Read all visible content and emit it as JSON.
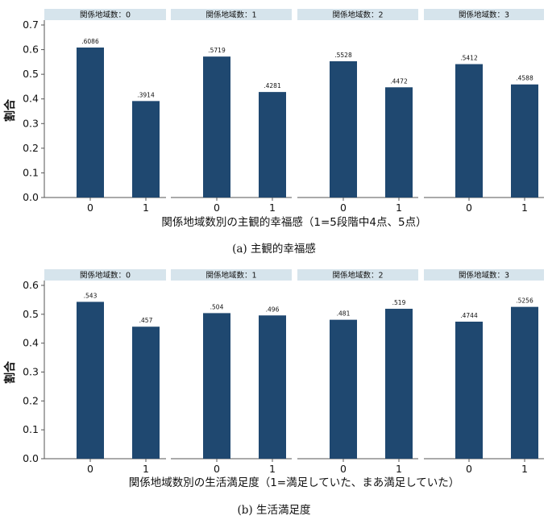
{
  "chart_data": [
    {
      "type": "bar",
      "caption": "(a)  主観的幸福感",
      "xlabel": "関係地域数別の主観的幸福感（1=5段階中4点、5点）",
      "ylabel": "割合",
      "ylim": [
        0,
        0.7
      ],
      "yticks": [
        "0.0",
        "0.1",
        "0.2",
        "0.3",
        "0.4",
        "0.5",
        "0.6",
        "0.7"
      ],
      "categories": [
        "0",
        "1"
      ],
      "bar_color": "#1f4870",
      "strip_color": "#d6e4ec",
      "panels": [
        {
          "title": "関係地域数：0",
          "values": [
            0.6086,
            0.3914
          ],
          "labels": [
            ".6086",
            ".3914"
          ]
        },
        {
          "title": "関係地域数：1",
          "values": [
            0.5719,
            0.4281
          ],
          "labels": [
            ".5719",
            ".4281"
          ]
        },
        {
          "title": "関係地域数：2",
          "values": [
            0.5528,
            0.4472
          ],
          "labels": [
            ".5528",
            ".4472"
          ]
        },
        {
          "title": "関係地域数：3",
          "values": [
            0.5412,
            0.4588
          ],
          "labels": [
            ".5412",
            ".4588"
          ]
        }
      ]
    },
    {
      "type": "bar",
      "caption": "(b)  生活満足度",
      "xlabel": "関係地域数別の生活満足度（1=満足していた、まあ満足していた）",
      "ylabel": "割合",
      "ylim": [
        0,
        0.6
      ],
      "yticks": [
        "0.0",
        "0.1",
        "0.2",
        "0.3",
        "0.4",
        "0.5",
        "0.6"
      ],
      "categories": [
        "0",
        "1"
      ],
      "bar_color": "#1f4870",
      "strip_color": "#d6e4ec",
      "panels": [
        {
          "title": "関係地域数：0",
          "values": [
            0.543,
            0.457
          ],
          "labels": [
            ".543",
            ".457"
          ]
        },
        {
          "title": "関係地域数：1",
          "values": [
            0.504,
            0.496
          ],
          "labels": [
            ".504",
            ".496"
          ]
        },
        {
          "title": "関係地域数：2",
          "values": [
            0.481,
            0.519
          ],
          "labels": [
            ".481",
            ".519"
          ]
        },
        {
          "title": "関係地域数：3",
          "values": [
            0.4744,
            0.5256
          ],
          "labels": [
            ".4744",
            ".5256"
          ]
        }
      ]
    }
  ]
}
